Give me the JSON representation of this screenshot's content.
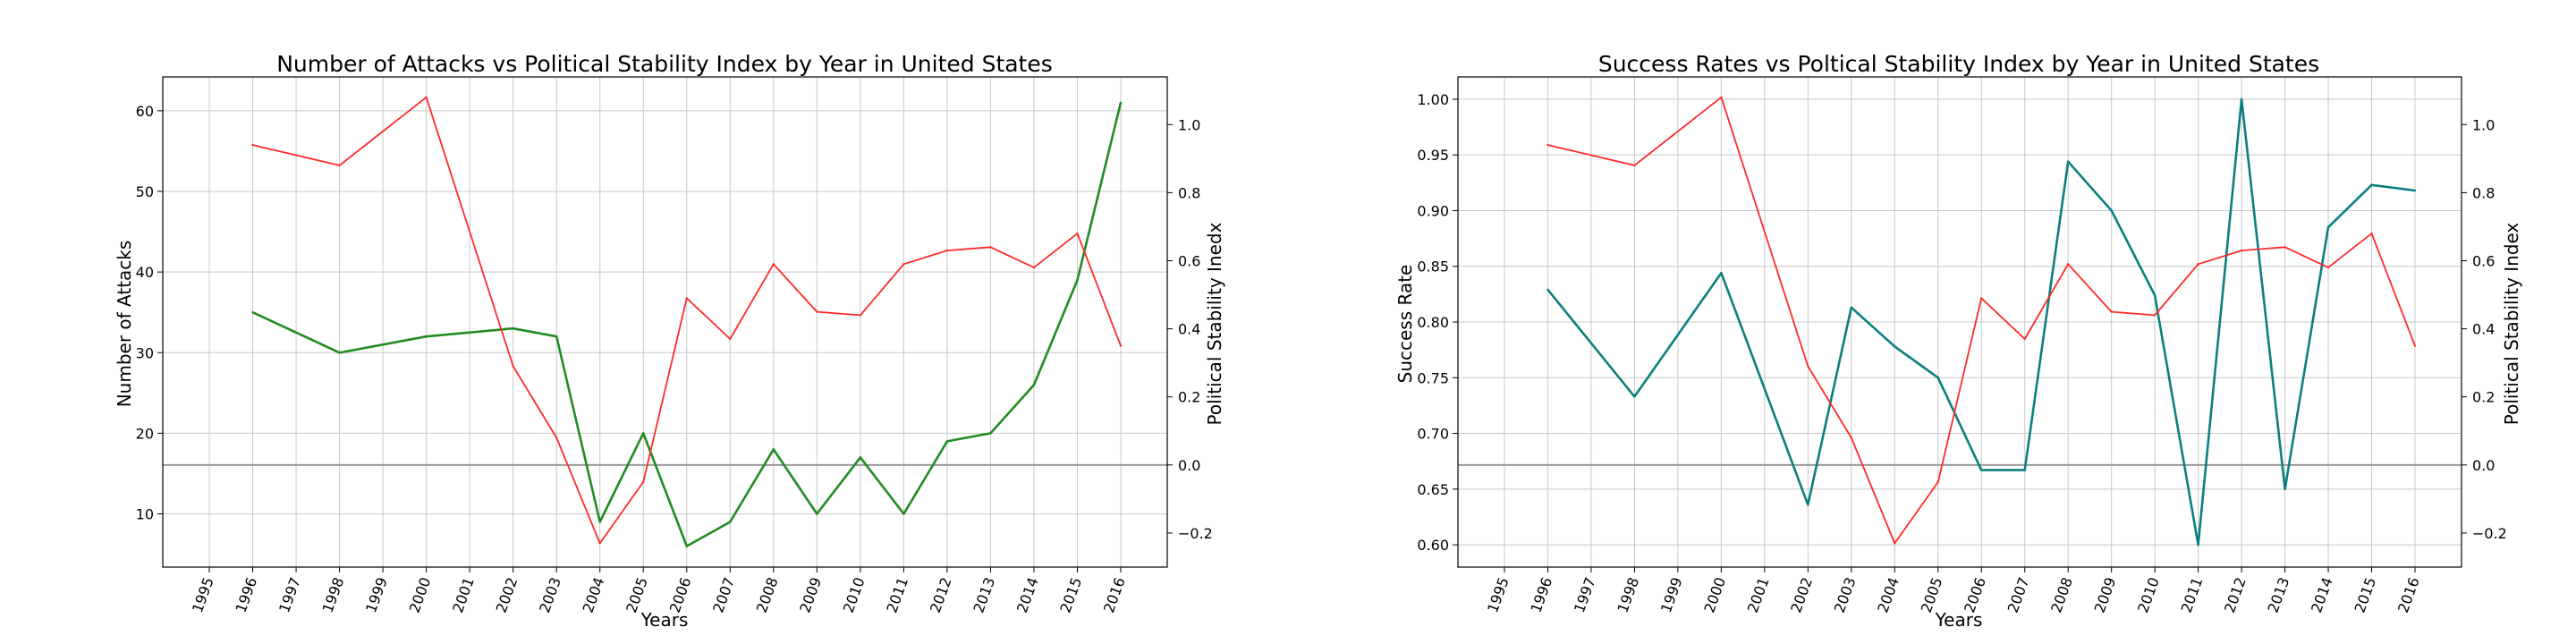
{
  "chart_data": [
    {
      "type": "line",
      "title": "Number of Attacks vs Political Stability Index by Year in United States",
      "xlabel": "Years",
      "ylabel": "Number of Attacks",
      "y2label": "Political Stability Inedx",
      "xlim": [
        1995,
        2016
      ],
      "xticks": [
        "1995",
        "1996",
        "1997",
        "1998",
        "1999",
        "2000",
        "2001",
        "2002",
        "2003",
        "2004",
        "2005",
        "2006",
        "2007",
        "2008",
        "2009",
        "2010",
        "2011",
        "2012",
        "2013",
        "2014",
        "2015",
        "2016"
      ],
      "ylim": [
        3.4,
        64.2
      ],
      "yticks": [
        "10",
        "20",
        "30",
        "40",
        "50",
        "60"
      ],
      "y2lim": [
        -0.3,
        1.14
      ],
      "y2ticks": [
        "−0.2",
        "0.0",
        "0.2",
        "0.4",
        "0.6",
        "0.8",
        "1.0"
      ],
      "grid": true,
      "series": [
        {
          "axis": "left",
          "color": "#228b22",
          "x": [
            1996,
            1998,
            2000,
            2002,
            2003,
            2004,
            2005,
            2006,
            2007,
            2008,
            2009,
            2010,
            2011,
            2012,
            2013,
            2014,
            2015,
            2016
          ],
          "values": [
            35,
            30,
            32,
            33,
            32,
            9,
            20,
            6,
            9,
            18,
            10,
            17,
            10,
            19,
            20,
            26,
            39,
            61
          ]
        },
        {
          "axis": "right",
          "color": "#ff2a2a",
          "x": [
            1996,
            1998,
            2000,
            2002,
            2003,
            2004,
            2005,
            2006,
            2007,
            2008,
            2009,
            2010,
            2011,
            2012,
            2013,
            2014,
            2015,
            2016
          ],
          "values": [
            0.94,
            0.88,
            1.08,
            0.29,
            0.08,
            -0.23,
            -0.05,
            0.49,
            0.37,
            0.59,
            0.45,
            0.44,
            0.59,
            0.63,
            0.64,
            0.58,
            0.68,
            0.35
          ]
        }
      ]
    },
    {
      "type": "line",
      "title": "Success Rates vs Poltical Stability Index by Year in United States",
      "xlabel": "Years",
      "ylabel": "Success Rate",
      "y2label": "Political Stability Index",
      "xlim": [
        1995,
        2016
      ],
      "xticks": [
        "1995",
        "1996",
        "1997",
        "1998",
        "1999",
        "2000",
        "2001",
        "2002",
        "2003",
        "2004",
        "2005",
        "2006",
        "2007",
        "2008",
        "2009",
        "2010",
        "2011",
        "2012",
        "2013",
        "2014",
        "2015",
        "2016"
      ],
      "ylim": [
        0.58,
        1.02
      ],
      "yticks": [
        "0.60",
        "0.65",
        "0.70",
        "0.75",
        "0.80",
        "0.85",
        "0.90",
        "0.95",
        "1.00"
      ],
      "y2lim": [
        -0.3,
        1.14
      ],
      "y2ticks": [
        "−0.2",
        "0.0",
        "0.2",
        "0.4",
        "0.6",
        "0.8",
        "1.0"
      ],
      "grid": true,
      "series": [
        {
          "axis": "left",
          "color": "#0b7f80",
          "x": [
            1996,
            1998,
            2000,
            2002,
            2003,
            2004,
            2005,
            2006,
            2007,
            2008,
            2009,
            2010,
            2011,
            2012,
            2013,
            2014,
            2015,
            2016
          ],
          "values": [
            0.829,
            0.733,
            0.844,
            0.636,
            0.813,
            0.778,
            0.75,
            0.667,
            0.667,
            0.944,
            0.9,
            0.824,
            0.6,
            1.0,
            0.65,
            0.885,
            0.923,
            0.918
          ]
        },
        {
          "axis": "right",
          "color": "#ff2a2a",
          "x": [
            1996,
            1998,
            2000,
            2002,
            2003,
            2004,
            2005,
            2006,
            2007,
            2008,
            2009,
            2010,
            2011,
            2012,
            2013,
            2014,
            2015,
            2016
          ],
          "values": [
            0.94,
            0.88,
            1.08,
            0.29,
            0.08,
            -0.23,
            -0.05,
            0.49,
            0.37,
            0.59,
            0.45,
            0.44,
            0.59,
            0.63,
            0.64,
            0.58,
            0.68,
            0.35
          ]
        }
      ]
    }
  ]
}
